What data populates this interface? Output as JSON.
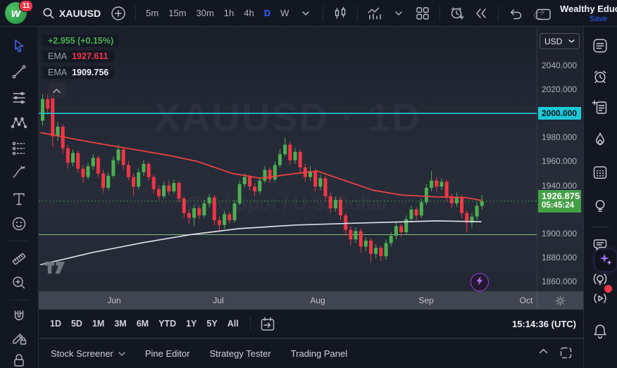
{
  "topbar": {
    "notification_count": "11",
    "logo_letter": "w",
    "symbol": "XAUUSD",
    "intervals": [
      "5m",
      "15m",
      "30m",
      "1h",
      "4h",
      "D",
      "W"
    ],
    "active_interval": "D",
    "account_name": "Wealthy Educ",
    "save_label": "Save"
  },
  "legend": {
    "change_text": "+2.955 (+0.15%)",
    "indicators": [
      {
        "label": "EMA",
        "value": "1927.611"
      },
      {
        "label": "EMA",
        "value": "1909.756"
      }
    ]
  },
  "price_axis": {
    "currency": "USD",
    "labels": [
      "2040.000",
      "2020.000",
      "2000.000",
      "1980.000",
      "1960.000",
      "1940.000",
      "1900.000",
      "1880.000",
      "1860.000"
    ],
    "last_price": "1926.875",
    "countdown": "05:45:24"
  },
  "time_axis": {
    "labels": [
      "Jun",
      "Jul",
      "Aug",
      "Sep",
      "Oct"
    ]
  },
  "range_toolbar": {
    "ranges": [
      "1D",
      "5D",
      "1M",
      "3M",
      "6M",
      "YTD",
      "1Y",
      "5Y",
      "All"
    ],
    "clock": "15:14:36 (UTC)"
  },
  "bottom_panel": {
    "tabs": [
      "Stock Screener",
      "Pine Editor",
      "Strategy Tester",
      "Trading Panel"
    ]
  },
  "watermark": {
    "title": "XAUUSD · 1D",
    "subtitle": "Gold Spot / U.S. Dollar"
  },
  "left_toolbar": {
    "tools": [
      "cursor",
      "trend-line",
      "horizontal-lines",
      "xabcd-pattern",
      "forecast",
      "brush",
      "text",
      "emoji",
      "ruler",
      "zoom-in",
      "magnet",
      "draw-lock",
      "lock"
    ]
  },
  "right_sidebar": {
    "icons": [
      "watchlist",
      "alerts",
      "notes",
      "hotlists",
      "calendar",
      "ideas",
      "chat",
      "ai-sparkles",
      "live-ideas",
      "streams",
      "notifications"
    ]
  },
  "chart_data": {
    "type": "candlestick",
    "symbol": "XAUUSD",
    "interval": "1D",
    "description": "Gold Spot / U.S. Dollar",
    "price_change": "+2.955 (+0.15%)",
    "x_labels": [
      "Jun",
      "Jul",
      "Aug",
      "Sep",
      "Oct"
    ],
    "y_range": [
      1853,
      2048
    ],
    "colors": {
      "up": "#4caf50",
      "down": "#f23645"
    },
    "candles_ohlc": [
      [
        1994,
        2016,
        1990,
        2012
      ],
      [
        2012,
        2016,
        2000,
        2004
      ],
      [
        2016,
        2026,
        1972,
        1981
      ],
      [
        1981,
        1993,
        1977,
        1989
      ],
      [
        1989,
        1991,
        1967,
        1971
      ],
      [
        1971,
        1974,
        1954,
        1959
      ],
      [
        1959,
        1970,
        1956,
        1967
      ],
      [
        1967,
        1969,
        1951,
        1954
      ],
      [
        1954,
        1957,
        1942,
        1947
      ],
      [
        1947,
        1959,
        1945,
        1956
      ],
      [
        1956,
        1966,
        1953,
        1963
      ],
      [
        1963,
        1965,
        1947,
        1950
      ],
      [
        1950,
        1953,
        1934,
        1938
      ],
      [
        1938,
        1951,
        1936,
        1948
      ],
      [
        1948,
        1964,
        1946,
        1961
      ],
      [
        1961,
        1974,
        1958,
        1970
      ],
      [
        1970,
        1972,
        1953,
        1957
      ],
      [
        1957,
        1960,
        1944,
        1947
      ],
      [
        1947,
        1950,
        1931,
        1939
      ],
      [
        1939,
        1954,
        1937,
        1951
      ],
      [
        1951,
        1961,
        1948,
        1958
      ],
      [
        1958,
        1960,
        1944,
        1947
      ],
      [
        1947,
        1949,
        1933,
        1937
      ],
      [
        1937,
        1940,
        1928,
        1931
      ],
      [
        1931,
        1943,
        1929,
        1940
      ],
      [
        1940,
        1944,
        1932,
        1935
      ],
      [
        1935,
        1945,
        1933,
        1942
      ],
      [
        1942,
        1944,
        1926,
        1929
      ],
      [
        1929,
        1931,
        1913,
        1917
      ],
      [
        1917,
        1920,
        1908,
        1913
      ],
      [
        1913,
        1924,
        1906,
        1921
      ],
      [
        1921,
        1923,
        1912,
        1915
      ],
      [
        1915,
        1928,
        1913,
        1925
      ],
      [
        1925,
        1933,
        1922,
        1930
      ],
      [
        1930,
        1932,
        1907,
        1911
      ],
      [
        1911,
        1914,
        1902,
        1907
      ],
      [
        1907,
        1919,
        1904,
        1916
      ],
      [
        1916,
        1918,
        1908,
        1911
      ],
      [
        1911,
        1928,
        1909,
        1925
      ],
      [
        1925,
        1944,
        1923,
        1941
      ],
      [
        1941,
        1950,
        1938,
        1947
      ],
      [
        1947,
        1949,
        1936,
        1939
      ],
      [
        1939,
        1942,
        1931,
        1935
      ],
      [
        1935,
        1947,
        1933,
        1944
      ],
      [
        1944,
        1956,
        1942,
        1953
      ],
      [
        1953,
        1955,
        1942,
        1945
      ],
      [
        1945,
        1960,
        1943,
        1957
      ],
      [
        1957,
        1970,
        1955,
        1966
      ],
      [
        1966,
        1980,
        1964,
        1974
      ],
      [
        1974,
        1976,
        1957,
        1961
      ],
      [
        1961,
        1971,
        1958,
        1968
      ],
      [
        1968,
        1970,
        1951,
        1955
      ],
      [
        1955,
        1958,
        1943,
        1947
      ],
      [
        1947,
        1956,
        1944,
        1952
      ],
      [
        1952,
        1954,
        1935,
        1939
      ],
      [
        1939,
        1949,
        1936,
        1946
      ],
      [
        1946,
        1948,
        1927,
        1931
      ],
      [
        1931,
        1934,
        1917,
        1921
      ],
      [
        1921,
        1931,
        1918,
        1928
      ],
      [
        1928,
        1930,
        1911,
        1915
      ],
      [
        1915,
        1917,
        1898,
        1903
      ],
      [
        1903,
        1906,
        1890,
        1895
      ],
      [
        1895,
        1905,
        1892,
        1902
      ],
      [
        1902,
        1904,
        1884,
        1889
      ],
      [
        1889,
        1897,
        1885,
        1894
      ],
      [
        1894,
        1896,
        1876,
        1883
      ],
      [
        1883,
        1891,
        1879,
        1888
      ],
      [
        1888,
        1890,
        1877,
        1881
      ],
      [
        1881,
        1895,
        1878,
        1892
      ],
      [
        1892,
        1901,
        1889,
        1898
      ],
      [
        1898,
        1909,
        1895,
        1906
      ],
      [
        1906,
        1908,
        1897,
        1901
      ],
      [
        1901,
        1915,
        1899,
        1912
      ],
      [
        1912,
        1923,
        1909,
        1920
      ],
      [
        1920,
        1922,
        1911,
        1915
      ],
      [
        1915,
        1929,
        1913,
        1926
      ],
      [
        1926,
        1941,
        1924,
        1938
      ],
      [
        1938,
        1952,
        1935,
        1944
      ],
      [
        1944,
        1947,
        1935,
        1939
      ],
      [
        1939,
        1946,
        1936,
        1943
      ],
      [
        1943,
        1945,
        1927,
        1931
      ],
      [
        1931,
        1933,
        1921,
        1925
      ],
      [
        1925,
        1934,
        1922,
        1930
      ],
      [
        1930,
        1932,
        1913,
        1917
      ],
      [
        1917,
        1919,
        1901,
        1909
      ],
      [
        1909,
        1917,
        1905,
        1914
      ],
      [
        1914,
        1926,
        1911,
        1923
      ],
      [
        1923,
        1932,
        1920,
        1926.9
      ]
    ],
    "overlays": {
      "ema_fast": {
        "label": "EMA",
        "value": 1927.611,
        "color": "#f2433f",
        "points": [
          [
            58,
            1984
          ],
          [
            120,
            1977
          ],
          [
            180,
            1971
          ],
          [
            240,
            1965
          ],
          [
            280,
            1960
          ],
          [
            330,
            1950
          ],
          [
            370,
            1946
          ],
          [
            420,
            1950
          ],
          [
            450,
            1952
          ],
          [
            490,
            1944
          ],
          [
            530,
            1936
          ],
          [
            570,
            1932
          ],
          [
            620,
            1930.5
          ],
          [
            660,
            1930
          ],
          [
            683,
            1927.6
          ]
        ]
      },
      "ema_slow": {
        "label": "EMA",
        "value": 1909.756,
        "color": "#d8dce6",
        "points": [
          [
            58,
            1874
          ],
          [
            130,
            1884
          ],
          [
            200,
            1892
          ],
          [
            270,
            1899
          ],
          [
            340,
            1904
          ],
          [
            420,
            1907
          ],
          [
            500,
            1908.5
          ],
          [
            560,
            1909.5
          ],
          [
            620,
            1910.5
          ],
          [
            683,
            1909.8
          ]
        ]
      },
      "hline_resistance": {
        "price": 2000.0,
        "color": "#1ec9d6"
      },
      "hline_support": {
        "price": 1899.0,
        "color": "#8bc98f"
      },
      "last_price_line": {
        "price": 1926.875,
        "color": "#4caf50",
        "style": "dotted"
      }
    }
  }
}
